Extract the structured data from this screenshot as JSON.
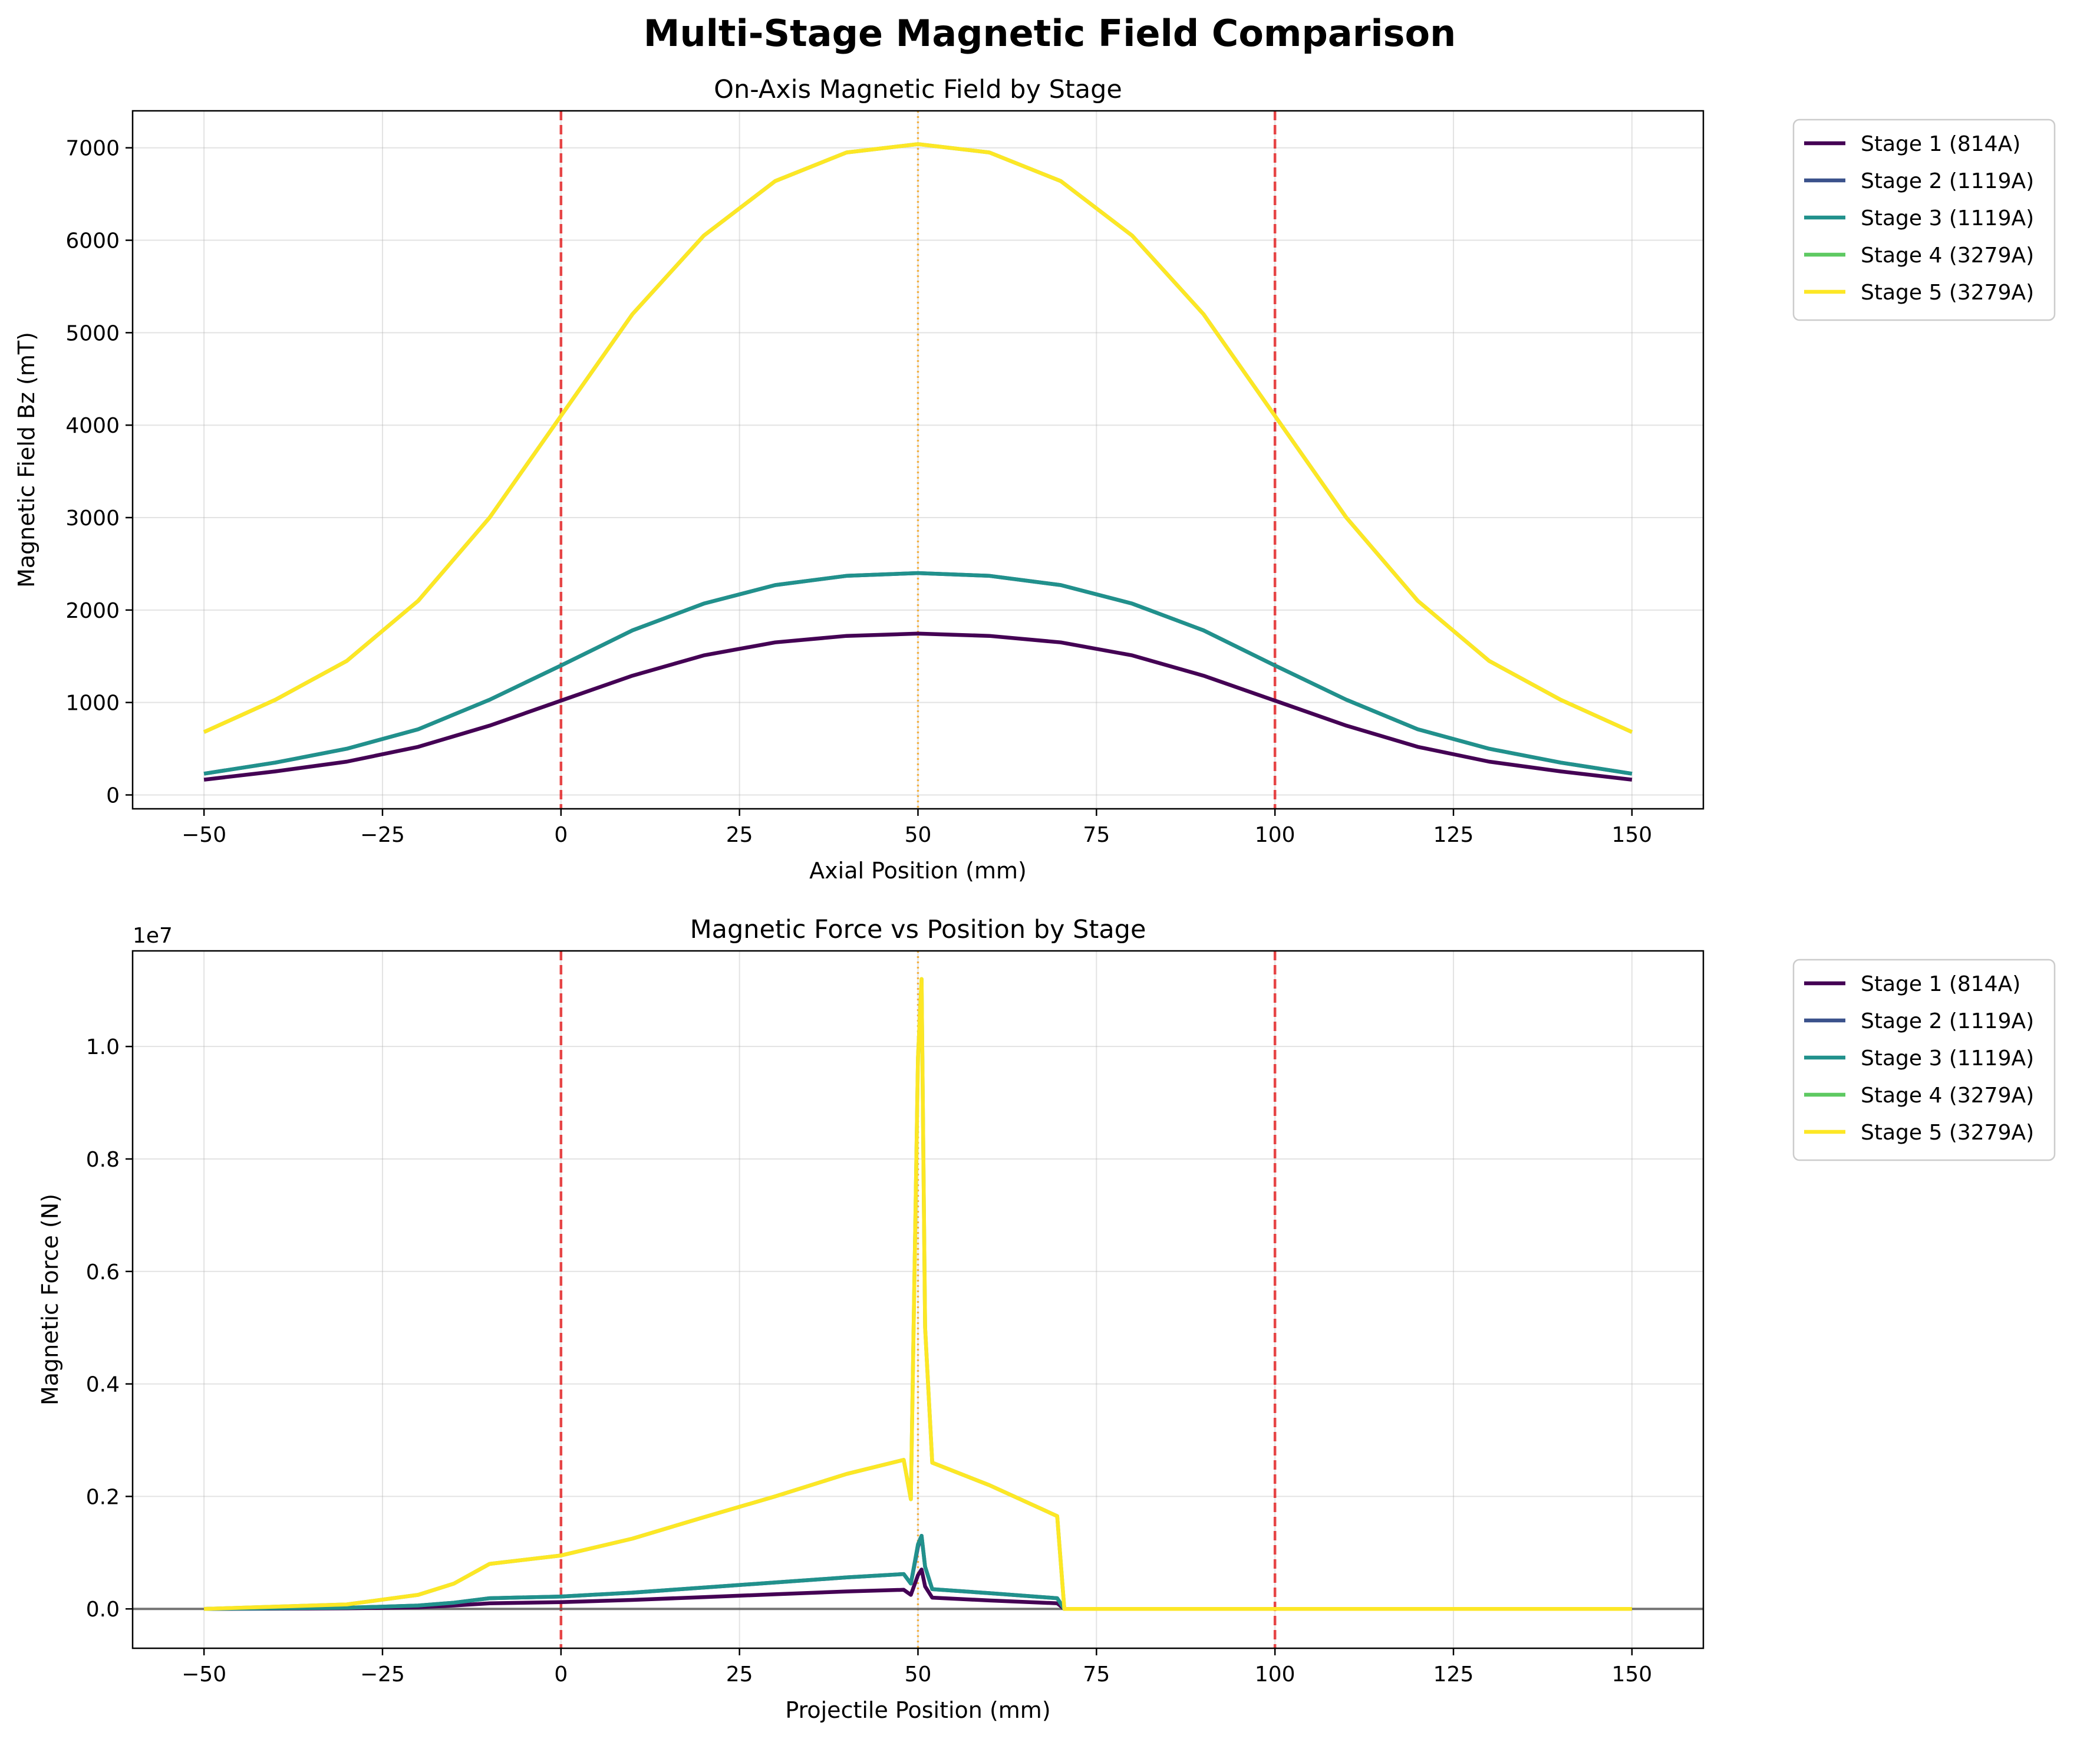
{
  "figure_title": "Multi-Stage Magnetic Field Comparison",
  "colors": {
    "stage1": "#440154",
    "stage2": "#3b528b",
    "stage3": "#21918c",
    "stage4": "#5ec962",
    "stage5": "#fde725",
    "coil_edge": "#e41a1c",
    "center_line": "#f5a623",
    "zero_line": "#555555"
  },
  "chart_data": [
    {
      "type": "line",
      "title": "On-Axis Magnetic Field by Stage",
      "xlabel": "Axial Position (mm)",
      "ylabel": "Magnetic Field Bz (mT)",
      "xlim": [
        -60,
        160
      ],
      "ylim": [
        -150,
        7400
      ],
      "xticks": [
        -50,
        -25,
        0,
        25,
        50,
        75,
        100,
        125,
        150
      ],
      "xtick_labels": [
        "−50",
        "−25",
        "0",
        "25",
        "50",
        "75",
        "100",
        "125",
        "150"
      ],
      "yticks": [
        0,
        1000,
        2000,
        3000,
        4000,
        5000,
        6000,
        7000
      ],
      "ytick_labels": [
        "0",
        "1000",
        "2000",
        "3000",
        "4000",
        "5000",
        "6000",
        "7000"
      ],
      "grid": true,
      "legend_placement": "outside upper right",
      "vlines_dashed": [
        0,
        100
      ],
      "vline_dotted": 50,
      "x": [
        -50,
        -40,
        -30,
        -20,
        -10,
        0,
        10,
        20,
        30,
        40,
        50,
        60,
        70,
        80,
        90,
        100,
        110,
        120,
        130,
        140,
        150
      ],
      "series": [
        {
          "name": "Stage 1 (814A)",
          "color_key": "stage1",
          "values": [
            165,
            255,
            360,
            520,
            750,
            1020,
            1290,
            1510,
            1650,
            1720,
            1745,
            1720,
            1650,
            1510,
            1290,
            1020,
            750,
            520,
            360,
            255,
            165
          ]
        },
        {
          "name": "Stage 2 (1119A)",
          "color_key": "stage2",
          "values": [
            230,
            350,
            500,
            710,
            1030,
            1400,
            1780,
            2070,
            2270,
            2370,
            2400,
            2370,
            2270,
            2070,
            1780,
            1400,
            1030,
            710,
            500,
            350,
            230
          ]
        },
        {
          "name": "Stage 3 (1119A)",
          "color_key": "stage3",
          "values": [
            230,
            350,
            500,
            710,
            1030,
            1400,
            1780,
            2070,
            2270,
            2370,
            2400,
            2370,
            2270,
            2070,
            1780,
            1400,
            1030,
            710,
            500,
            350,
            230
          ]
        },
        {
          "name": "Stage 4 (3279A)",
          "color_key": "stage4",
          "values": [
            680,
            1030,
            1450,
            2100,
            3000,
            4100,
            5200,
            6050,
            6640,
            6950,
            7040,
            6950,
            6640,
            6050,
            5200,
            4100,
            3000,
            2100,
            1450,
            1030,
            680
          ]
        },
        {
          "name": "Stage 5 (3279A)",
          "color_key": "stage5",
          "values": [
            680,
            1030,
            1450,
            2100,
            3000,
            4100,
            5200,
            6050,
            6640,
            6950,
            7040,
            6950,
            6640,
            6050,
            5200,
            4100,
            3000,
            2100,
            1450,
            1030,
            680
          ]
        }
      ]
    },
    {
      "type": "line",
      "title": "Magnetic Force vs Position by Stage",
      "xlabel": "Projectile Position (mm)",
      "ylabel": "Magnetic Force (N)",
      "y_offset_label": "1e7",
      "xlim": [
        -60,
        160
      ],
      "ylim": [
        -0.07,
        1.17
      ],
      "xticks": [
        -50,
        -25,
        0,
        25,
        50,
        75,
        100,
        125,
        150
      ],
      "xtick_labels": [
        "−50",
        "−25",
        "0",
        "25",
        "50",
        "75",
        "100",
        "125",
        "150"
      ],
      "yticks": [
        0.0,
        0.2,
        0.4,
        0.6,
        0.8,
        1.0
      ],
      "ytick_labels": [
        "0.0",
        "0.2",
        "0.4",
        "0.6",
        "0.8",
        "1.0"
      ],
      "grid": true,
      "legend_placement": "outside upper right",
      "vlines_dashed": [
        0,
        100
      ],
      "vline_dotted": 50,
      "hline": 0,
      "x": [
        -50,
        -30,
        -20,
        -15,
        -10,
        0,
        10,
        20,
        30,
        40,
        48,
        49,
        50,
        50.5,
        51,
        52,
        60,
        69.5,
        70.5,
        100,
        150
      ],
      "series": [
        {
          "name": "Stage 1 (814A)",
          "color_key": "stage1",
          "values": [
            0,
            0.001,
            0.003,
            0.006,
            0.01,
            0.012,
            0.016,
            0.021,
            0.026,
            0.031,
            0.034,
            0.025,
            0.06,
            0.07,
            0.04,
            0.02,
            0.015,
            0.01,
            0,
            0,
            0
          ]
        },
        {
          "name": "Stage 2 (1119A)",
          "color_key": "stage2",
          "values": [
            0,
            0.002,
            0.006,
            0.011,
            0.019,
            0.022,
            0.029,
            0.038,
            0.047,
            0.056,
            0.062,
            0.045,
            0.11,
            0.13,
            0.075,
            0.035,
            0.028,
            0.019,
            0,
            0,
            0
          ]
        },
        {
          "name": "Stage 3 (1119A)",
          "color_key": "stage3",
          "values": [
            0,
            0.002,
            0.006,
            0.011,
            0.019,
            0.022,
            0.029,
            0.038,
            0.047,
            0.056,
            0.062,
            0.045,
            0.115,
            0.13,
            0.075,
            0.035,
            0.028,
            0.019,
            0,
            0,
            0
          ]
        },
        {
          "name": "Stage 4 (3279A)",
          "color_key": "stage4",
          "values": [
            0,
            0.008,
            0.025,
            0.045,
            0.08,
            0.095,
            0.125,
            0.163,
            0.2,
            0.24,
            0.265,
            0.195,
            0.98,
            1.12,
            0.5,
            0.26,
            0.22,
            0.165,
            0,
            0,
            0
          ]
        },
        {
          "name": "Stage 5 (3279A)",
          "color_key": "stage5",
          "values": [
            0,
            0.008,
            0.025,
            0.045,
            0.08,
            0.095,
            0.125,
            0.163,
            0.2,
            0.24,
            0.265,
            0.195,
            0.98,
            1.12,
            0.5,
            0.26,
            0.22,
            0.165,
            0,
            0,
            0
          ]
        }
      ]
    }
  ]
}
